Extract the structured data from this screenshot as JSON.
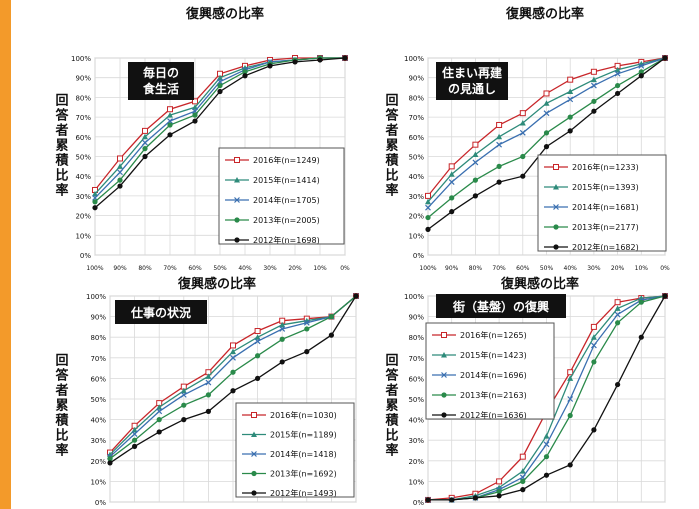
{
  "accent_color": "#f39a2a",
  "top_titles": [
    "復興感の比率",
    "復興感の比率"
  ],
  "chart_data": [
    {
      "type": "line",
      "panel_title": "毎日の\n食生活",
      "xlabel": "復興感の比率",
      "ylabel": "回答者累積比率",
      "x": [
        "100%",
        "90%",
        "80%",
        "70%",
        "60%",
        "50%",
        "40%",
        "30%",
        "20%",
        "10%",
        "0%"
      ],
      "yticks": [
        "0%",
        "10%",
        "20%",
        "30%",
        "40%",
        "50%",
        "60%",
        "70%",
        "80%",
        "90%",
        "100%"
      ],
      "ylim": [
        0,
        100
      ],
      "grid": true,
      "legend_position": "right",
      "series": [
        {
          "name": "2016年(n=1249)",
          "color": "#c8262a",
          "marker": "square-open",
          "values": [
            33,
            49,
            63,
            74,
            78,
            92,
            96,
            99,
            100,
            100,
            100
          ]
        },
        {
          "name": "2015年(n=1414)",
          "color": "#2e8b7a",
          "marker": "triangle",
          "values": [
            31,
            45,
            60,
            71,
            75,
            90,
            95,
            98,
            99,
            100,
            100
          ]
        },
        {
          "name": "2014年(n=1705)",
          "color": "#3a6fb0",
          "marker": "cross",
          "values": [
            29,
            42,
            57,
            68,
            73,
            88,
            94,
            98,
            99,
            100,
            100
          ]
        },
        {
          "name": "2013年(n=2005)",
          "color": "#2a8a4a",
          "marker": "dot",
          "values": [
            27,
            38,
            54,
            66,
            71,
            86,
            93,
            97,
            99,
            100,
            100
          ]
        },
        {
          "name": "2012年(n=1698)",
          "color": "#111111",
          "marker": "dot",
          "values": [
            24,
            35,
            50,
            61,
            68,
            83,
            91,
            96,
            98,
            99,
            100
          ]
        }
      ]
    },
    {
      "type": "line",
      "panel_title": "住まい再建\nの見通し",
      "xlabel": "復興感の比率",
      "ylabel": "回答者累積比率",
      "x": [
        "100%",
        "90%",
        "80%",
        "70%",
        "60%",
        "50%",
        "40%",
        "30%",
        "20%",
        "10%",
        "0%"
      ],
      "yticks": [
        "0%",
        "10%",
        "20%",
        "30%",
        "40%",
        "50%",
        "60%",
        "70%",
        "80%",
        "90%",
        "100%"
      ],
      "ylim": [
        0,
        100
      ],
      "grid": true,
      "legend_position": "right",
      "series": [
        {
          "name": "2016年(n=1233)",
          "color": "#c8262a",
          "marker": "square-open",
          "values": [
            30,
            45,
            56,
            66,
            72,
            82,
            89,
            93,
            96,
            98,
            100
          ]
        },
        {
          "name": "2015年(n=1393)",
          "color": "#2e8b7a",
          "marker": "triangle",
          "values": [
            27,
            41,
            51,
            60,
            67,
            77,
            83,
            89,
            94,
            97,
            100
          ]
        },
        {
          "name": "2014年(n=1681)",
          "color": "#3a6fb0",
          "marker": "cross",
          "values": [
            24,
            37,
            47,
            56,
            62,
            72,
            79,
            86,
            92,
            96,
            100
          ]
        },
        {
          "name": "2013年(n=2177)",
          "color": "#2a8a4a",
          "marker": "dot",
          "values": [
            19,
            29,
            38,
            45,
            50,
            62,
            70,
            78,
            86,
            93,
            100
          ]
        },
        {
          "name": "2012年(n=1682)",
          "color": "#111111",
          "marker": "dot",
          "values": [
            13,
            22,
            30,
            37,
            40,
            55,
            63,
            73,
            82,
            91,
            100
          ]
        }
      ]
    },
    {
      "type": "line",
      "panel_title": "仕事の状況",
      "xlabel": "",
      "ylabel": "回答者累積比率",
      "yticks": [
        "0%",
        "10%",
        "20%",
        "30%",
        "40%",
        "50%",
        "60%",
        "70%",
        "80%",
        "90%",
        "100%"
      ],
      "ylim": [
        0,
        100
      ],
      "grid": true,
      "legend_position": "right",
      "series": [
        {
          "name": "2016年(n=1030)",
          "color": "#c8262a",
          "marker": "square-open",
          "values": [
            24,
            37,
            48,
            56,
            63,
            76,
            83,
            88,
            89,
            90,
            100
          ]
        },
        {
          "name": "2015年(n=1189)",
          "color": "#2e8b7a",
          "marker": "triangle",
          "values": [
            23,
            35,
            46,
            54,
            61,
            73,
            80,
            86,
            88,
            90,
            100
          ]
        },
        {
          "name": "2014年(n=1418)",
          "color": "#3a6fb0",
          "marker": "cross",
          "values": [
            22,
            33,
            44,
            52,
            58,
            70,
            78,
            84,
            87,
            90,
            100
          ]
        },
        {
          "name": "2013年(n=1692)",
          "color": "#2a8a4a",
          "marker": "dot",
          "values": [
            21,
            30,
            40,
            47,
            52,
            63,
            71,
            79,
            84,
            90,
            100
          ]
        },
        {
          "name": "2012年(n=1493)",
          "color": "#111111",
          "marker": "dot",
          "values": [
            19,
            27,
            34,
            40,
            44,
            54,
            60,
            68,
            73,
            81,
            100
          ]
        }
      ]
    },
    {
      "type": "line",
      "panel_title": "街（基盤）の復興",
      "xlabel": "",
      "ylabel": "回答者累積比率",
      "yticks": [
        "0%",
        "10%",
        "20%",
        "30%",
        "40%",
        "50%",
        "60%",
        "70%",
        "80%",
        "90%",
        "100%"
      ],
      "ylim": [
        0,
        100
      ],
      "grid": true,
      "legend_position": "top-left",
      "series": [
        {
          "name": "2016年(n=1265)",
          "color": "#c8262a",
          "marker": "square-open",
          "values": [
            1,
            2,
            4,
            10,
            22,
            44,
            63,
            85,
            97,
            99,
            100
          ]
        },
        {
          "name": "2015年(n=1423)",
          "color": "#2e8b7a",
          "marker": "triangle",
          "values": [
            1,
            1,
            3,
            7,
            15,
            32,
            60,
            80,
            94,
            99,
            100
          ]
        },
        {
          "name": "2014年(n=1696)",
          "color": "#3a6fb0",
          "marker": "cross",
          "values": [
            1,
            1,
            2,
            6,
            12,
            28,
            50,
            76,
            91,
            98,
            100
          ]
        },
        {
          "name": "2013年(n=2163)",
          "color": "#2a8a4a",
          "marker": "dot",
          "values": [
            1,
            1,
            2,
            5,
            10,
            22,
            42,
            68,
            87,
            97,
            100
          ]
        },
        {
          "name": "2012年(n=1636)",
          "color": "#111111",
          "marker": "dot",
          "values": [
            1,
            1,
            2,
            3,
            6,
            13,
            18,
            35,
            57,
            80,
            100
          ]
        }
      ]
    }
  ]
}
